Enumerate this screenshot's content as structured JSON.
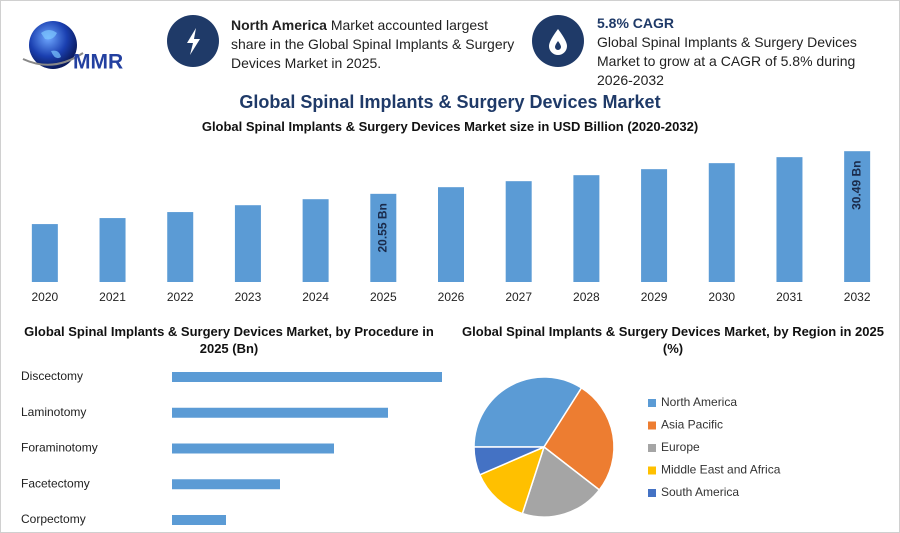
{
  "logo": "MMR",
  "callouts": [
    {
      "highlight": "North America",
      "text": "Market accounted largest share in the Global Spinal Implants & Surgery Devices Market in 2025."
    },
    {
      "title": "5.8% CAGR",
      "text": "Global Spinal Implants & Surgery Devices Market to grow at a CAGR of 5.8% during 2026-2032"
    }
  ],
  "title": "Global Spinal Implants & Surgery Devices Market",
  "chart_data": [
    {
      "type": "bar",
      "title": "Global Spinal Implants & Surgery Devices Market size in USD Billion (2020-2032)",
      "categories": [
        "2020",
        "2021",
        "2022",
        "2023",
        "2024",
        "2025",
        "2026",
        "2027",
        "2028",
        "2029",
        "2030",
        "2031",
        "2032"
      ],
      "values": [
        13.5,
        14.9,
        16.3,
        17.9,
        19.3,
        20.55,
        22.1,
        23.5,
        24.9,
        26.3,
        27.7,
        29.1,
        30.49
      ],
      "value_labels": [
        null,
        null,
        null,
        null,
        null,
        "20.55 Bn",
        null,
        null,
        null,
        null,
        null,
        null,
        "30.49 Bn"
      ],
      "color": "#5b9bd5",
      "ylim": [
        0,
        31
      ]
    },
    {
      "type": "barh",
      "title": "Global Spinal Implants & Surgery Devices Market, by Procedure in 2025 (Bn)",
      "categories": [
        "Discectomy",
        "Laminotomy",
        "Foraminotomy",
        "Facetectomy",
        "Corpectomy"
      ],
      "values": [
        5,
        4,
        3,
        2,
        1
      ],
      "color": "#5b9bd5",
      "xlim": [
        0,
        5
      ]
    },
    {
      "type": "pie",
      "title": "Global Spinal Implants & Surgery Devices Market, by Region in 2025 (%)",
      "categories": [
        "North America",
        "Asia Pacific",
        "Europe",
        "Middle East and Africa",
        "South America"
      ],
      "values": [
        34,
        26.5,
        19.5,
        13.5,
        6.5
      ],
      "colors": [
        "#5b9bd5",
        "#ed7d31",
        "#a5a5a5",
        "#ffc000",
        "#4472c4"
      ]
    }
  ]
}
